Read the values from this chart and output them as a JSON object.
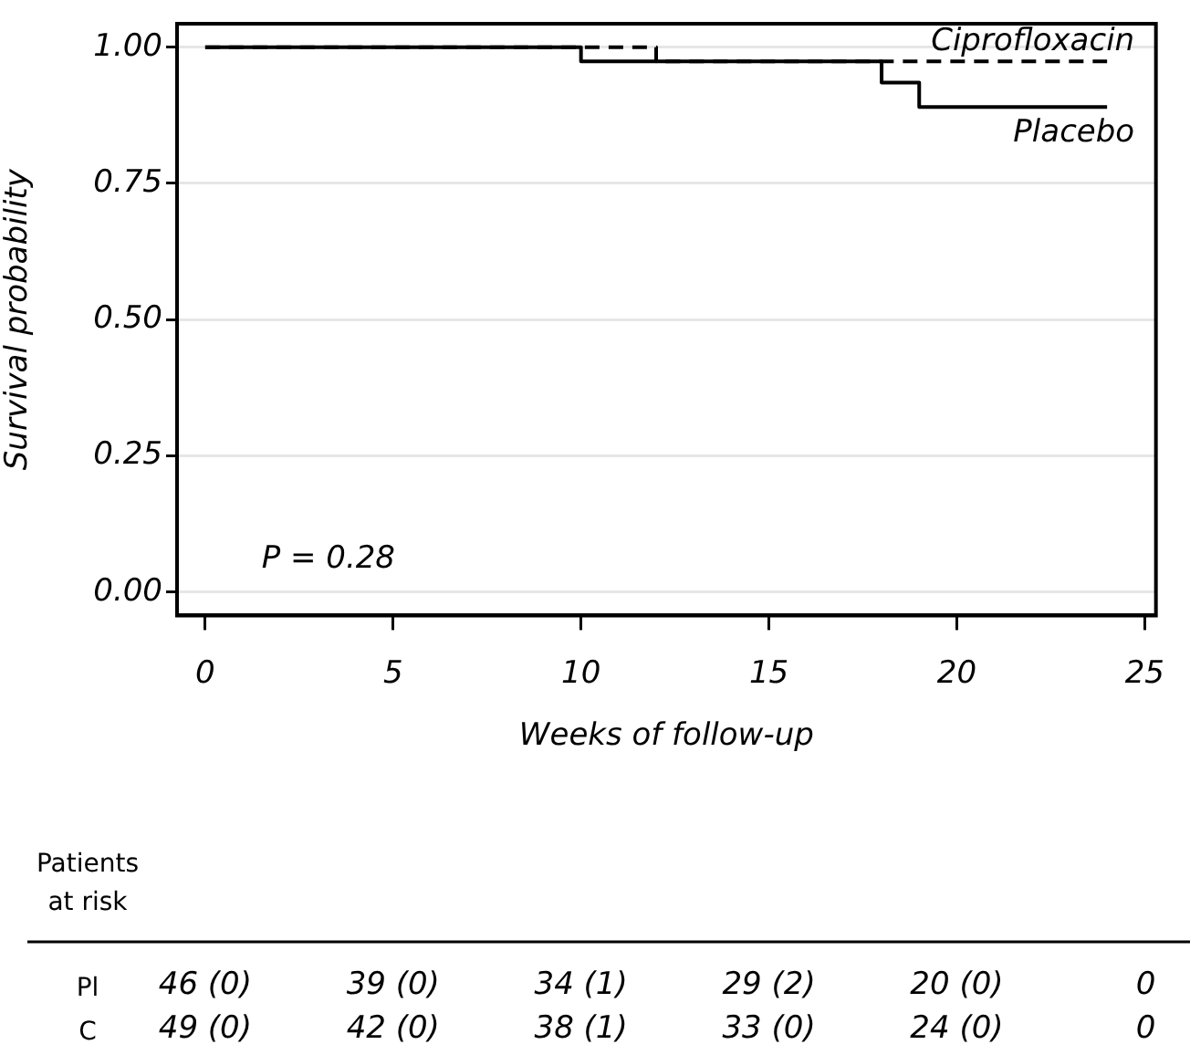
{
  "chart_data": {
    "type": "step",
    "xlabel": "Weeks of follow-up",
    "ylabel": "Survival probability",
    "xlim": [
      -0.75,
      25.3
    ],
    "xticks": [
      0,
      5,
      10,
      15,
      20,
      25
    ],
    "ylim": [
      -0.043,
      1.043
    ],
    "yticks": [
      {
        "value": 0,
        "label": "0.00"
      },
      {
        "value": 0.25,
        "label": "0.25"
      },
      {
        "value": 0.5,
        "label": "0.50"
      },
      {
        "value": 0.75,
        "label": "0.75"
      },
      {
        "value": 1,
        "label": "1.00"
      }
    ],
    "grid": "y",
    "legend": false,
    "marker": "none",
    "series": [
      {
        "name": "Ciprofloxacin",
        "color": "#000000",
        "line_style": "dashed",
        "x": [
          0,
          12,
          24
        ],
        "values": [
          1,
          0.974,
          0.974
        ]
      },
      {
        "name": "Placebo",
        "color": "#000000",
        "line_style": "solid",
        "x": [
          0,
          10,
          18,
          19,
          24
        ],
        "values": [
          1,
          0.974,
          0.935,
          0.89,
          0.89
        ]
      }
    ],
    "annotations": [
      "P = 0.28",
      "Patients\nat risk",
      "Pl",
      "46 (0)",
      "39 (0)",
      "34 (1)",
      "29 (2)",
      "20 (0)",
      "0",
      "C",
      "49 (0)",
      "42 (0)",
      "38 (1)",
      "33 (0)",
      "24 (0)",
      "0"
    ]
  }
}
